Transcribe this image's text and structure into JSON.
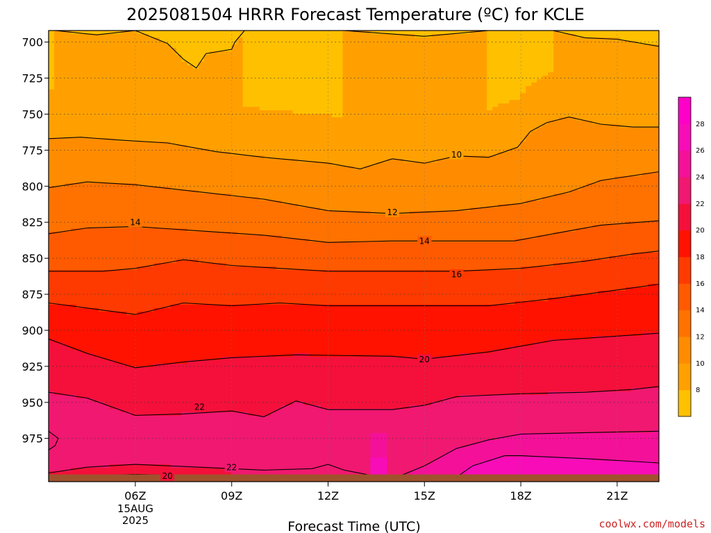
{
  "colors": {
    "credit": "#cc2222",
    "ground": "#a0522d",
    "contour_line": "#000000",
    "gridline": "#777777"
  },
  "chart_data": {
    "type": "heatmap",
    "title": "2025081504 HRRR Forecast Temperature (ºC) for KCLE",
    "xlabel": "Forecast Time (UTC)",
    "ylabel": "",
    "credit": "coolwx.com/models",
    "x_unit": "forecast hour UTC (15 Aug 2025)",
    "x_range": [
      3.3,
      22.3
    ],
    "y_range": [
      1005,
      692
    ],
    "y_scale": "pressure (hPa), inverted",
    "grid": true,
    "x_ticks": [
      {
        "value": 6,
        "label": "06Z",
        "sub": [
          "15AUG",
          "2025"
        ]
      },
      {
        "value": 9,
        "label": "09Z"
      },
      {
        "value": 12,
        "label": "12Z"
      },
      {
        "value": 15,
        "label": "15Z"
      },
      {
        "value": 18,
        "label": "18Z"
      },
      {
        "value": 21,
        "label": "21Z"
      }
    ],
    "y_ticks": [
      {
        "value": 700,
        "label": "700"
      },
      {
        "value": 725,
        "label": "725"
      },
      {
        "value": 750,
        "label": "750"
      },
      {
        "value": 775,
        "label": "775"
      },
      {
        "value": 800,
        "label": "800"
      },
      {
        "value": 825,
        "label": "825"
      },
      {
        "value": 850,
        "label": "850"
      },
      {
        "value": 875,
        "label": "875"
      },
      {
        "value": 900,
        "label": "900"
      },
      {
        "value": 925,
        "label": "925"
      },
      {
        "value": 950,
        "label": "950"
      },
      {
        "value": 975,
        "label": "975"
      }
    ],
    "colorbar": {
      "levels": [
        6,
        8,
        10,
        12,
        14,
        16,
        18,
        20,
        22,
        24,
        26,
        28,
        30
      ],
      "tick_labels": [
        "8",
        "10",
        "12",
        "14",
        "16",
        "18",
        "20",
        "22",
        "24",
        "26",
        "28"
      ],
      "colors": [
        "#ffc000",
        "#ffa000",
        "#ff8c00",
        "#ff7200",
        "#ff5a00",
        "#ff3a00",
        "#ff1200",
        "#f4103a",
        "#f01870",
        "#f41098",
        "#f80cb8",
        "#ff00c8"
      ]
    },
    "contours": [
      {
        "level": 8,
        "points": [
          [
            3.5,
            692
          ],
          [
            4.8,
            695
          ],
          [
            6.0,
            692
          ],
          [
            7.0,
            701
          ],
          [
            7.5,
            712
          ],
          [
            7.9,
            718
          ],
          [
            8.2,
            708
          ],
          [
            9.0,
            705
          ],
          [
            9.1,
            700
          ],
          [
            9.4,
            692
          ]
        ]
      },
      {
        "level": 8,
        "points": [
          [
            12.5,
            692
          ],
          [
            15.0,
            696
          ],
          [
            17.0,
            692
          ]
        ]
      },
      {
        "level": 8,
        "points": [
          [
            19.0,
            692
          ],
          [
            20.0,
            697
          ],
          [
            21.0,
            698
          ],
          [
            22.3,
            703
          ]
        ]
      },
      {
        "level": 10,
        "points": [
          [
            3.3,
            767
          ],
          [
            4.3,
            766
          ],
          [
            5.5,
            768
          ],
          [
            7.0,
            770
          ],
          [
            8.5,
            776
          ],
          [
            10.0,
            780
          ],
          [
            12.0,
            784
          ],
          [
            13.0,
            788
          ],
          [
            14.0,
            781
          ],
          [
            15.0,
            784
          ],
          [
            16.0,
            779
          ],
          [
            17.0,
            780
          ],
          [
            17.9,
            773
          ],
          [
            18.3,
            762
          ],
          [
            18.8,
            756
          ],
          [
            19.5,
            752
          ],
          [
            20.5,
            757
          ],
          [
            21.5,
            759
          ],
          [
            22.3,
            759
          ]
        ]
      },
      {
        "level": 12,
        "points": [
          [
            3.3,
            801
          ],
          [
            4.5,
            797
          ],
          [
            6.0,
            799
          ],
          [
            8.0,
            804
          ],
          [
            10.0,
            809
          ],
          [
            12.0,
            817
          ],
          [
            14.0,
            819
          ],
          [
            16.0,
            817
          ],
          [
            18.0,
            812
          ],
          [
            19.5,
            804
          ],
          [
            20.5,
            796
          ],
          [
            22.3,
            790
          ]
        ]
      },
      {
        "level": 14,
        "points": [
          [
            3.3,
            833
          ],
          [
            4.5,
            829
          ],
          [
            6.0,
            828
          ],
          [
            8.0,
            831
          ],
          [
            10.0,
            834
          ],
          [
            12.0,
            839
          ],
          [
            14.0,
            838
          ],
          [
            16.0,
            838
          ],
          [
            17.8,
            838
          ],
          [
            19.5,
            831
          ],
          [
            20.5,
            827
          ],
          [
            22.3,
            824
          ]
        ]
      },
      {
        "level": 16,
        "points": [
          [
            3.3,
            859
          ],
          [
            5.0,
            859
          ],
          [
            6.0,
            857
          ],
          [
            7.5,
            851
          ],
          [
            9.0,
            855
          ],
          [
            10.5,
            857
          ],
          [
            12.0,
            859
          ],
          [
            14.0,
            859
          ],
          [
            16.0,
            859
          ],
          [
            18.0,
            857
          ],
          [
            20.0,
            852
          ],
          [
            21.5,
            847
          ],
          [
            22.3,
            845
          ]
        ]
      },
      {
        "level": 18,
        "points": [
          [
            3.3,
            881
          ],
          [
            5.0,
            886
          ],
          [
            6.0,
            889
          ],
          [
            7.5,
            881
          ],
          [
            9.0,
            883
          ],
          [
            10.5,
            881
          ],
          [
            12.0,
            883
          ],
          [
            15.0,
            883
          ],
          [
            17.0,
            883
          ],
          [
            19.0,
            878
          ],
          [
            21.0,
            872
          ],
          [
            22.3,
            868
          ]
        ]
      },
      {
        "level": 20,
        "points": [
          [
            3.3,
            906
          ],
          [
            4.5,
            916
          ],
          [
            6.0,
            926
          ],
          [
            7.5,
            922
          ],
          [
            9.0,
            919
          ],
          [
            11.0,
            917
          ],
          [
            14.0,
            918
          ],
          [
            15.0,
            920
          ],
          [
            17.0,
            915
          ],
          [
            19.0,
            907
          ],
          [
            21.0,
            904
          ],
          [
            22.3,
            902
          ]
        ]
      },
      {
        "level": 22,
        "points": [
          [
            3.3,
            943
          ],
          [
            4.5,
            947
          ],
          [
            6.0,
            959
          ],
          [
            7.5,
            958
          ],
          [
            9.0,
            956
          ],
          [
            10.0,
            960
          ],
          [
            11.0,
            949
          ],
          [
            12.0,
            955
          ],
          [
            14.0,
            955
          ],
          [
            15.0,
            952
          ],
          [
            16.0,
            946
          ],
          [
            18.0,
            944
          ],
          [
            20.0,
            943
          ],
          [
            21.5,
            941
          ],
          [
            22.3,
            939
          ]
        ]
      },
      {
        "level": 22,
        "points": [
          [
            3.3,
            999
          ],
          [
            4.5,
            995
          ],
          [
            6.0,
            993
          ],
          [
            8.0,
            995
          ],
          [
            10.0,
            997
          ],
          [
            11.5,
            996
          ],
          [
            12.0,
            993
          ],
          [
            12.5,
            997
          ],
          [
            13.2,
            1000
          ],
          [
            13.4,
            1005
          ]
        ]
      },
      {
        "level": 24,
        "points": [
          [
            13.8,
            1005
          ],
          [
            15.0,
            994
          ],
          [
            16.0,
            982
          ],
          [
            17.0,
            976
          ],
          [
            18.0,
            972
          ],
          [
            20.0,
            971
          ],
          [
            22.3,
            970
          ]
        ]
      },
      {
        "level": 26,
        "points": [
          [
            15.8,
            1005
          ],
          [
            16.5,
            994
          ],
          [
            17.5,
            987
          ],
          [
            18.0,
            987
          ],
          [
            20.0,
            989
          ],
          [
            22.3,
            992
          ]
        ]
      },
      {
        "level": 20,
        "points": [
          [
            3.3,
            1002
          ],
          [
            6.0,
            1000
          ],
          [
            8.0,
            1001
          ],
          [
            9.0,
            1001
          ]
        ]
      },
      {
        "level": 26,
        "points": [
          [
            3.3,
            970
          ],
          [
            3.6,
            975
          ],
          [
            3.5,
            980
          ],
          [
            3.3,
            983
          ]
        ]
      }
    ],
    "contour_labels": [
      {
        "text": "10",
        "x": 16.0,
        "y": 778
      },
      {
        "text": "12",
        "x": 14.0,
        "y": 818
      },
      {
        "text": "14",
        "x": 6.0,
        "y": 825
      },
      {
        "text": "14",
        "x": 15.0,
        "y": 838
      },
      {
        "text": "16",
        "x": 16.0,
        "y": 861
      },
      {
        "text": "20",
        "x": 15.0,
        "y": 920
      },
      {
        "text": "22",
        "x": 8.0,
        "y": 953
      },
      {
        "text": "22",
        "x": 9.0,
        "y": 995
      },
      {
        "text": "20",
        "x": 7.0,
        "y": 1001
      }
    ],
    "ground_level_hpa": 1000
  }
}
